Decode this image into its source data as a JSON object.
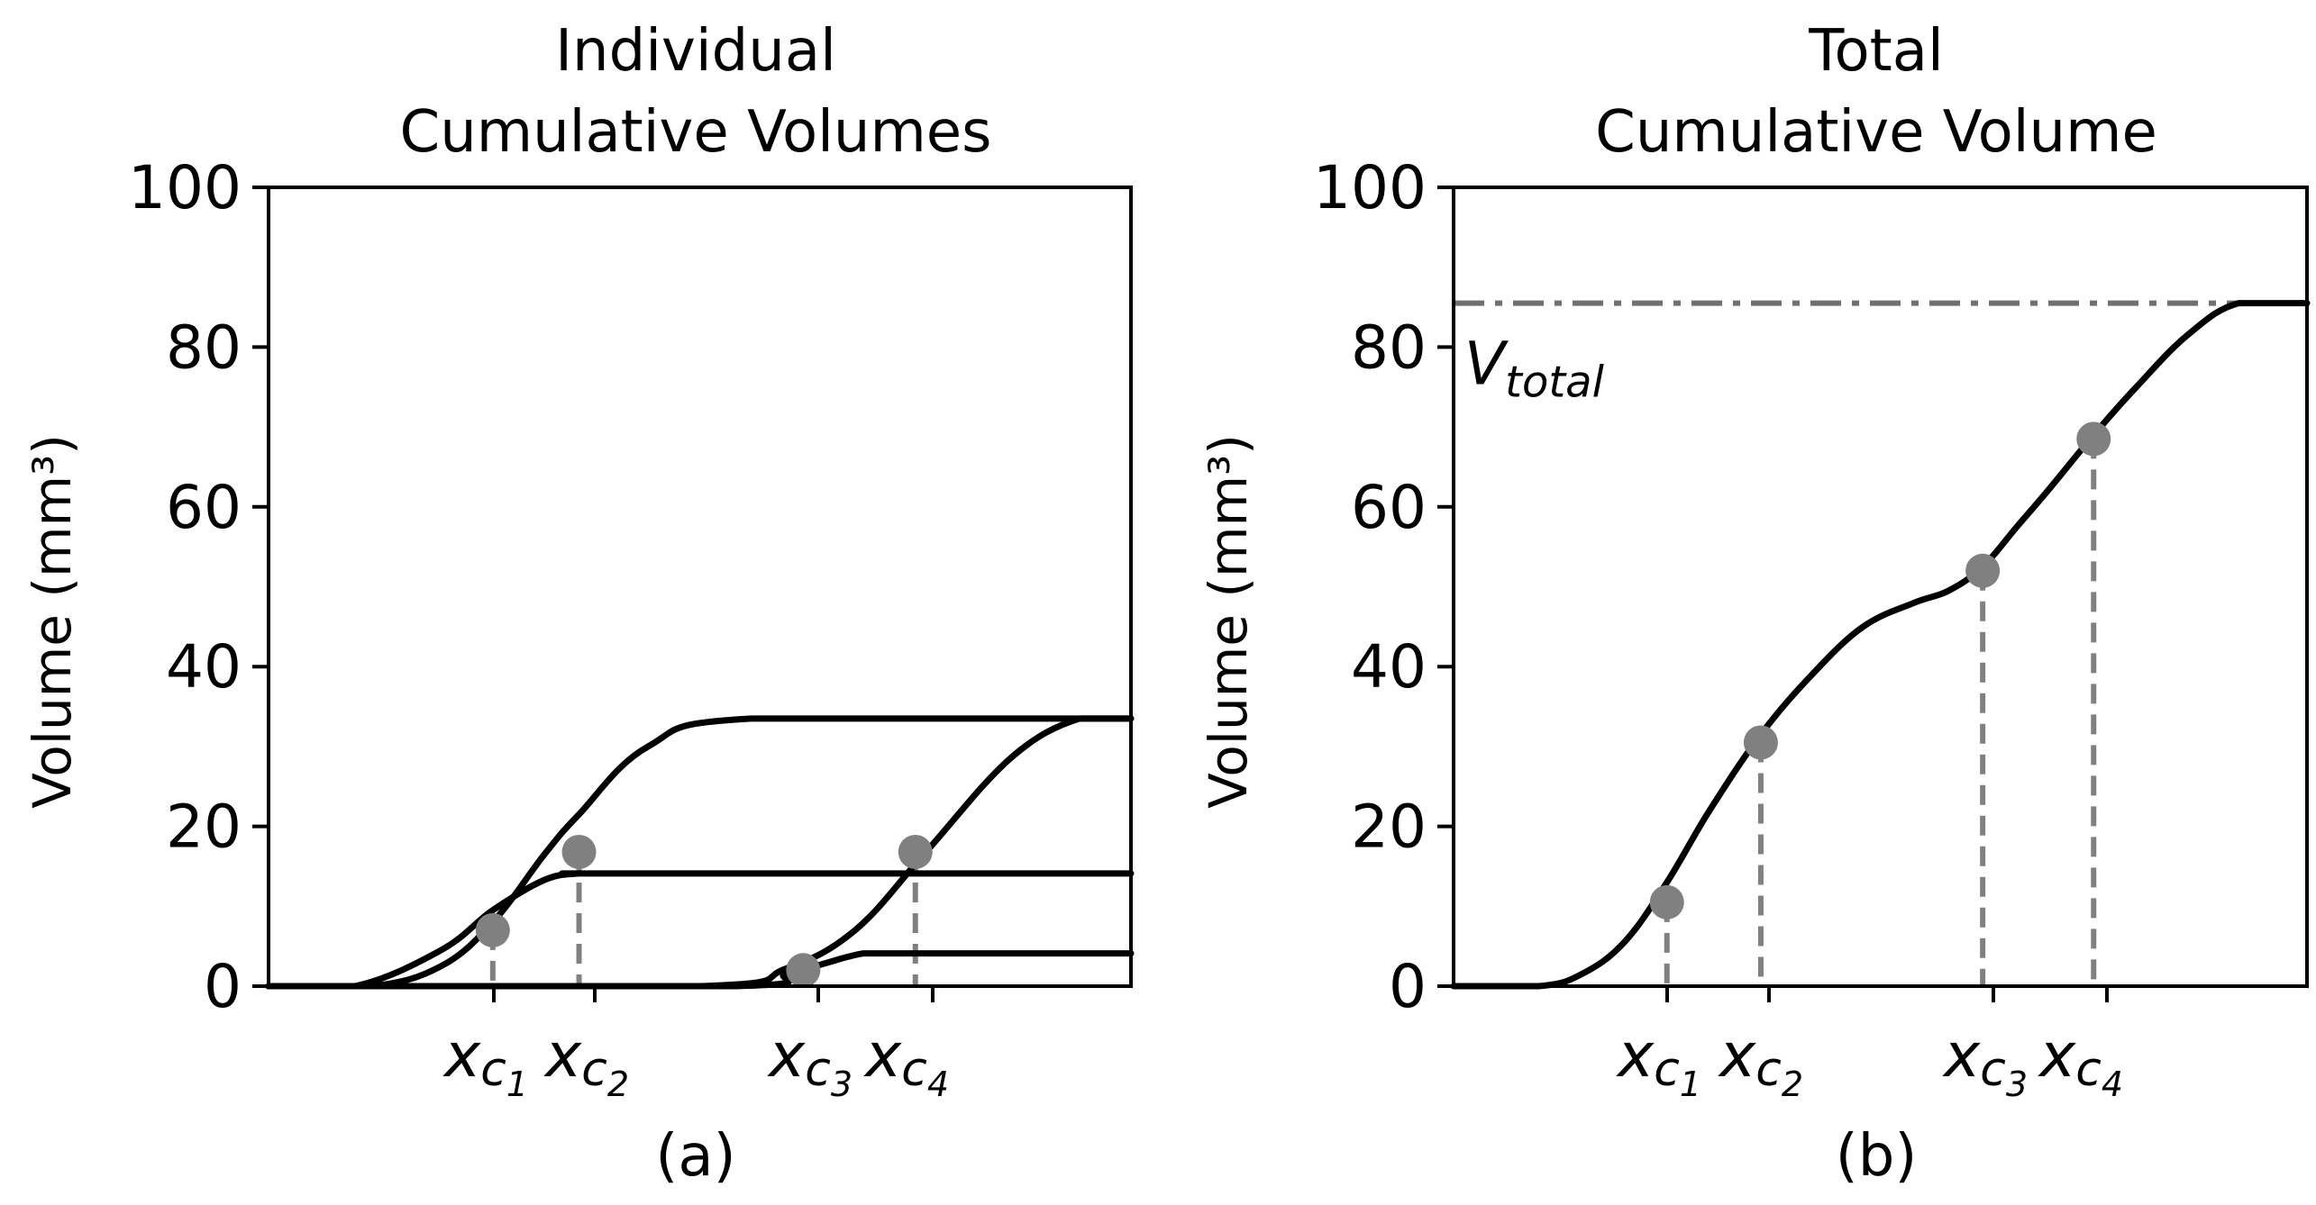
{
  "chart_data": [
    {
      "type": "line",
      "title": "Individual\nCumulative Volumes",
      "subtitle": "(a)",
      "ylabel": "Volume (mm³)",
      "ylim": [
        0,
        100
      ],
      "yticks": [
        "0",
        "20",
        "40",
        "60",
        "80",
        "100"
      ],
      "xticks": [
        {
          "base": "x",
          "sub": "c",
          "subsub": "1"
        },
        {
          "base": "x",
          "sub": "c",
          "subsub": "2"
        },
        {
          "base": "x",
          "sub": "c",
          "subsub": "3"
        },
        {
          "base": "x",
          "sub": "c",
          "subsub": "4"
        }
      ],
      "xlim": [
        0,
        10
      ],
      "grid": false,
      "series": [
        {
          "x": [
            0,
            1.0,
            2.0,
            2.6,
            3.2,
            3.6,
            4.0,
            10
          ],
          "y": [
            0,
            0,
            4.5,
            9.5,
            13.3,
            14.1,
            14.1,
            14.1
          ]
        },
        {
          "x": [
            0,
            1.2,
            2.0,
            2.6,
            3.2,
            3.6,
            4.4,
            5.6,
            10
          ],
          "y": [
            0,
            0,
            2.5,
            8.0,
            16.5,
            21.5,
            30.0,
            33.5,
            33.5
          ]
        },
        {
          "x": [
            0,
            5.4,
            6.0,
            6.4,
            6.9,
            7.3,
            10
          ],
          "y": [
            0,
            0,
            1.5,
            2.7,
            4.1,
            4.1,
            4.1
          ]
        },
        {
          "x": [
            0,
            5.0,
            6.0,
            6.8,
            7.6,
            8.6,
            9.4,
            10
          ],
          "y": [
            0,
            0,
            2.2,
            7.0,
            16.5,
            28.5,
            33.5,
            33.5
          ]
        }
      ],
      "markers": [
        {
          "x": 2.6,
          "y": 7.0
        },
        {
          "x": 3.6,
          "y": 16.8
        },
        {
          "x": 6.2,
          "y": 2.0
        },
        {
          "x": 7.5,
          "y": 16.8
        }
      ]
    },
    {
      "type": "line",
      "title": "Total\nCumulative Volume",
      "subtitle": "(b)",
      "ylabel": "Volume (mm³)",
      "ylim": [
        0,
        100
      ],
      "yticks": [
        "0",
        "20",
        "40",
        "60",
        "80",
        "100"
      ],
      "xticks": [
        {
          "base": "x",
          "sub": "c",
          "subsub": "1"
        },
        {
          "base": "x",
          "sub": "c",
          "subsub": "2"
        },
        {
          "base": "x",
          "sub": "c",
          "subsub": "3"
        },
        {
          "base": "x",
          "sub": "c",
          "subsub": "4"
        }
      ],
      "xlim": [
        0,
        10
      ],
      "grid": false,
      "hline": {
        "y": 85.5,
        "label_base": "V",
        "label_sub": "total"
      },
      "series": [
        {
          "x": [
            0,
            1.0,
            1.5,
            2.0,
            2.5,
            3.0,
            3.6,
            4.2,
            4.8,
            5.4,
            5.8,
            6.2,
            6.6,
            7.0,
            7.5,
            8.0,
            8.6,
            9.2,
            10
          ],
          "y": [
            0,
            0,
            1.5,
            5.5,
            13.0,
            22.0,
            31.5,
            39.0,
            45.0,
            48.0,
            49.5,
            52.5,
            57.5,
            62.5,
            69.0,
            75.0,
            81.5,
            85.5,
            85.5
          ]
        }
      ],
      "markers": [
        {
          "x": 2.5,
          "y": 10.5
        },
        {
          "x": 3.6,
          "y": 30.5
        },
        {
          "x": 6.2,
          "y": 52.0
        },
        {
          "x": 7.5,
          "y": 68.5
        }
      ]
    }
  ]
}
